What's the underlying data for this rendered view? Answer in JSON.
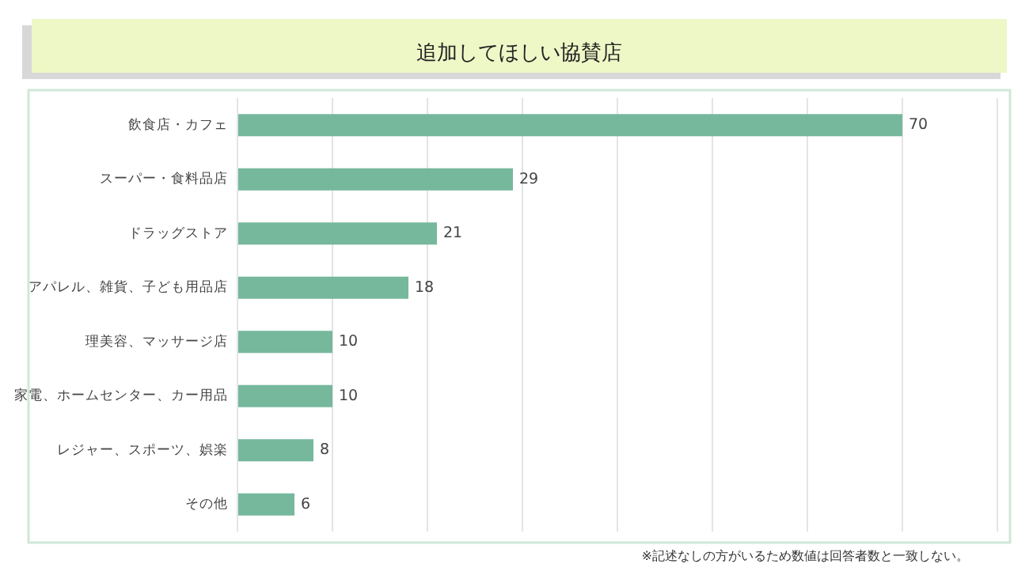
{
  "chart_data": {
    "type": "bar",
    "orientation": "horizontal",
    "title": "追加してほしい協賛店",
    "categories": [
      "飲食店・カフェ",
      "スーパー・食料品店",
      "ドラッグストア",
      "アパレル、雑貨、子ども用品店",
      "理美容、マッサージ店",
      "家電、ホームセンター、カー用品",
      "レジャー、スポーツ、娯楽",
      "その他"
    ],
    "values": [
      70,
      29,
      21,
      18,
      10,
      10,
      8,
      6
    ],
    "color": "#76b89c",
    "data_labels": true,
    "grid": "x",
    "xlim": [
      0,
      80
    ],
    "xticks": [
      {
        "value": 0,
        "label": null
      },
      {
        "value": 10,
        "label": null
      },
      {
        "value": 20,
        "label": null
      },
      {
        "value": 30,
        "label": null
      },
      {
        "value": 40,
        "label": null
      },
      {
        "value": 50,
        "label": null
      },
      {
        "value": 60,
        "label": null
      },
      {
        "value": 70,
        "label": null
      },
      {
        "value": 80,
        "label": null
      }
    ],
    "annotations": [
      "※記述なしの方がいるため数値は回答者数と一致しない。"
    ]
  }
}
